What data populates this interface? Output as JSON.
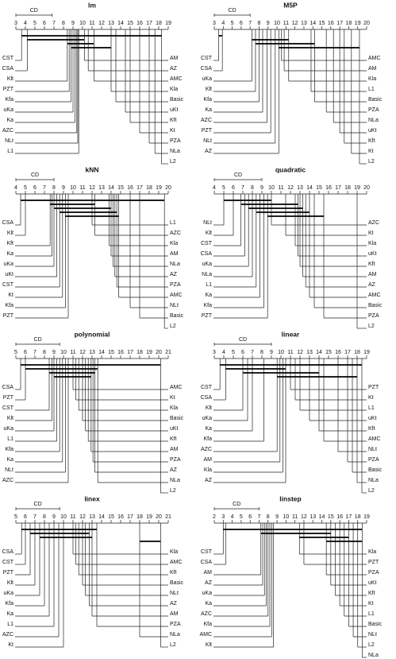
{
  "chart_data": [
    {
      "type": "cd-diagram",
      "title": "lm",
      "cd_label": "CD",
      "cd": 3.8,
      "xlim": [
        3,
        19
      ],
      "xticks": [
        3,
        4,
        5,
        6,
        7,
        8,
        9,
        10,
        11,
        12,
        13,
        14,
        15,
        16,
        17,
        18,
        19
      ],
      "left": {
        "categories": [
          "CST",
          "CSA",
          "Klt",
          "PZT",
          "Kfa",
          "uKa",
          "Ka",
          "AZC",
          "NLt",
          "L1"
        ],
        "values": [
          3.6,
          4.2,
          8.4,
          8.6,
          8.8,
          9.0,
          9.2,
          9.4,
          9.5,
          9.6
        ]
      },
      "right": {
        "categories": [
          "AM",
          "AZ",
          "AMC",
          "Kla",
          "Basic",
          "uKt",
          "Kft",
          "Kt",
          "PZA",
          "NLa",
          "L2"
        ],
        "values": [
          10.2,
          10.6,
          11.2,
          13.0,
          13.5,
          14.5,
          15.0,
          16.0,
          17.0,
          17.6,
          18.3
        ]
      },
      "cliques": [
        [
          3.6,
          18.3
        ],
        [
          4.2,
          10.2
        ],
        [
          8.4,
          11.2
        ],
        [
          8.8,
          13.0
        ]
      ]
    },
    {
      "type": "cd-diagram",
      "title": "M5P",
      "cd_label": "CD",
      "cd": 4.0,
      "xlim": [
        3,
        20
      ],
      "xticks": [
        3,
        4,
        5,
        6,
        7,
        8,
        9,
        10,
        11,
        12,
        13,
        14,
        15,
        16,
        17,
        18,
        19,
        20
      ],
      "left": {
        "categories": [
          "CST",
          "CSA",
          "uKa",
          "Klt",
          "Kfa",
          "Ka",
          "AZC",
          "PZT",
          "NLt",
          "AZ"
        ],
        "values": [
          3.5,
          3.9,
          7.2,
          7.6,
          8.0,
          8.4,
          8.9,
          9.3,
          9.8,
          10.2
        ]
      },
      "right": {
        "categories": [
          "AMC",
          "AM",
          "Kla",
          "L1",
          "Basic",
          "PZA",
          "NLa",
          "uKt",
          "Kft",
          "Kt",
          "L2"
        ],
        "values": [
          10.5,
          10.8,
          11.3,
          13.8,
          14.2,
          15.5,
          16.3,
          17.0,
          17.5,
          18.3,
          19.2
        ]
      },
      "cliques": [
        [
          3.5,
          3.9
        ],
        [
          7.2,
          11.3
        ],
        [
          7.6,
          14.2
        ],
        [
          10.2,
          19.2
        ]
      ]
    },
    {
      "type": "cd-diagram",
      "title": "kNN",
      "cd_label": "CD",
      "cd": 4.0,
      "xlim": [
        4,
        20
      ],
      "xticks": [
        4,
        5,
        6,
        7,
        8,
        9,
        10,
        11,
        12,
        13,
        14,
        15,
        16,
        17,
        18,
        19,
        20
      ],
      "left": {
        "categories": [
          "CSA",
          "Klt",
          "Kft",
          "Ka",
          "uKa",
          "uKt",
          "CST",
          "Kt",
          "Kfa",
          "PZT"
        ],
        "values": [
          4.5,
          5.0,
          7.6,
          7.8,
          8.0,
          8.3,
          8.6,
          8.9,
          9.2,
          9.5
        ]
      },
      "right": {
        "categories": [
          "L1",
          "AZC",
          "Kla",
          "AM",
          "NLa",
          "AZ",
          "PZA",
          "AMC",
          "NLt",
          "Basic",
          "L2"
        ],
        "values": [
          12.0,
          12.3,
          13.8,
          14.0,
          14.2,
          14.4,
          14.6,
          14.8,
          16.0,
          17.0,
          19.6
        ]
      },
      "cliques": [
        [
          4.5,
          19.6
        ],
        [
          7.6,
          12.3
        ],
        [
          8.0,
          14.0
        ],
        [
          8.6,
          14.6
        ],
        [
          9.2,
          14.8
        ]
      ]
    },
    {
      "type": "cd-diagram",
      "title": "quadratic",
      "cd_label": "CD",
      "cd": 5.0,
      "xlim": [
        4,
        20
      ],
      "xticks": [
        4,
        5,
        6,
        7,
        8,
        9,
        10,
        11,
        12,
        13,
        14,
        15,
        16,
        17,
        18,
        19,
        20
      ],
      "left": {
        "categories": [
          "NLt",
          "Klt",
          "CST",
          "CSA",
          "uKa",
          "NLa",
          "L1",
          "Ka",
          "Kfa",
          "PZT"
        ],
        "values": [
          5.0,
          6.0,
          6.8,
          7.2,
          7.6,
          8.0,
          8.4,
          8.8,
          9.2,
          9.6
        ]
      },
      "right": {
        "categories": [
          "AZC",
          "Kt",
          "Kla",
          "uKt",
          "Kft",
          "AM",
          "AZ",
          "AMC",
          "Basic",
          "PZA",
          "L2"
        ],
        "values": [
          10.0,
          11.5,
          12.5,
          12.8,
          13.0,
          13.3,
          13.6,
          14.0,
          14.5,
          15.5,
          19.0
        ]
      },
      "cliques": [
        [
          5.0,
          10.0
        ],
        [
          6.8,
          12.8
        ],
        [
          7.6,
          13.3
        ],
        [
          8.4,
          14.0
        ],
        [
          9.6,
          15.5
        ]
      ]
    },
    {
      "type": "cd-diagram",
      "title": "polynomial",
      "cd_label": "CD",
      "cd": 4.6,
      "xlim": [
        5,
        21
      ],
      "xticks": [
        5,
        6,
        7,
        8,
        9,
        10,
        11,
        12,
        13,
        14,
        15,
        16,
        17,
        18,
        19,
        20,
        21
      ],
      "left": {
        "categories": [
          "CSA",
          "PZT",
          "CST",
          "Klt",
          "uKa",
          "L1",
          "Kfa",
          "Ka",
          "NLt",
          "AZC"
        ],
        "values": [
          5.5,
          6.0,
          8.5,
          8.8,
          9.0,
          9.3,
          9.6,
          9.9,
          10.2,
          10.5
        ]
      },
      "right": {
        "categories": [
          "AMC",
          "Kt",
          "Kla",
          "Basic",
          "uKt",
          "Kft",
          "AM",
          "PZA",
          "AZ",
          "NLa",
          "L2"
        ],
        "values": [
          11.0,
          11.3,
          11.6,
          12.0,
          12.3,
          12.6,
          12.9,
          13.1,
          13.3,
          13.6,
          20.2
        ]
      },
      "cliques": [
        [
          5.5,
          20.2
        ],
        [
          6.0,
          13.6
        ],
        [
          8.5,
          13.3
        ],
        [
          9.0,
          12.9
        ]
      ]
    },
    {
      "type": "cd-diagram",
      "title": "linear",
      "cd_label": "CD",
      "cd": 6.0,
      "xlim": [
        3,
        19
      ],
      "xticks": [
        3,
        4,
        5,
        6,
        7,
        8,
        9,
        10,
        11,
        12,
        13,
        14,
        15,
        16,
        17,
        18,
        19
      ],
      "left": {
        "categories": [
          "CST",
          "CSA",
          "Klt",
          "uKa",
          "Ka",
          "Kfa",
          "AZC",
          "AM",
          "Kla",
          "AZ"
        ],
        "values": [
          3.6,
          4.2,
          6.0,
          6.5,
          7.0,
          8.2,
          9.6,
          9.9,
          10.2,
          10.5
        ]
      },
      "right": {
        "categories": [
          "PZT",
          "Kt",
          "L1",
          "uKt",
          "Kft",
          "AMC",
          "NLt",
          "PZA",
          "Basic",
          "NLa",
          "L2"
        ],
        "values": [
          11.0,
          11.5,
          12.0,
          13.0,
          14.0,
          14.5,
          16.0,
          17.0,
          17.5,
          18.0,
          18.5
        ]
      },
      "cliques": [
        [
          3.6,
          18.5
        ],
        [
          4.2,
          10.5
        ],
        [
          6.0,
          14.0
        ],
        [
          9.6,
          18.0
        ]
      ]
    },
    {
      "type": "cd-diagram",
      "title": "linex",
      "cd_label": "CD",
      "cd": 4.6,
      "xlim": [
        5,
        21
      ],
      "xticks": [
        5,
        6,
        7,
        8,
        9,
        10,
        11,
        12,
        13,
        14,
        15,
        16,
        17,
        18,
        19,
        20,
        21
      ],
      "left": {
        "categories": [
          "CSA",
          "CST",
          "PZT",
          "Klt",
          "uKa",
          "Kfa",
          "Ka",
          "L1",
          "AZC",
          "Kt"
        ],
        "values": [
          5.6,
          6.0,
          6.5,
          7.0,
          7.5,
          8.0,
          8.5,
          9.0,
          9.5,
          10.0
        ]
      },
      "right": {
        "categories": [
          "Kla",
          "AMC",
          "Kft",
          "Basic",
          "NLt",
          "AZ",
          "AM",
          "PZA",
          "NLa",
          "L2"
        ],
        "values": [
          11.0,
          11.3,
          11.6,
          12.0,
          12.3,
          12.7,
          13.0,
          13.5,
          18.0,
          20.2
        ]
      },
      "cliques": [
        [
          5.6,
          13.5
        ],
        [
          6.5,
          12.7
        ],
        [
          7.5,
          13.0
        ],
        [
          18.0,
          20.2
        ]
      ]
    },
    {
      "type": "cd-diagram",
      "title": "linstep",
      "cd_label": "CD",
      "cd": 5.0,
      "xlim": [
        2,
        19
      ],
      "xticks": [
        2,
        3,
        4,
        5,
        6,
        7,
        8,
        9,
        10,
        11,
        12,
        13,
        14,
        15,
        16,
        17,
        18,
        19
      ],
      "left": {
        "categories": [
          "CST",
          "CSA",
          "AM",
          "AZ",
          "uKa",
          "Ka",
          "AZC",
          "Kfa",
          "AMC",
          "Klt"
        ],
        "values": [
          3.0,
          3.3,
          7.2,
          7.4,
          7.6,
          7.8,
          8.0,
          8.2,
          8.4,
          8.6
        ]
      },
      "right": {
        "categories": [
          "Kla",
          "PZT",
          "PZA",
          "uKt",
          "Kft",
          "Kt",
          "L1",
          "Basic",
          "NLt",
          "L2",
          "NLa"
        ],
        "values": [
          11.5,
          12.0,
          14.5,
          15.0,
          15.5,
          16.0,
          16.5,
          17.0,
          17.5,
          18.0,
          18.5
        ]
      },
      "cliques": [
        [
          3.0,
          18.5
        ],
        [
          7.2,
          15.0
        ],
        [
          11.5,
          17.0
        ],
        [
          14.5,
          18.5
        ]
      ]
    }
  ]
}
